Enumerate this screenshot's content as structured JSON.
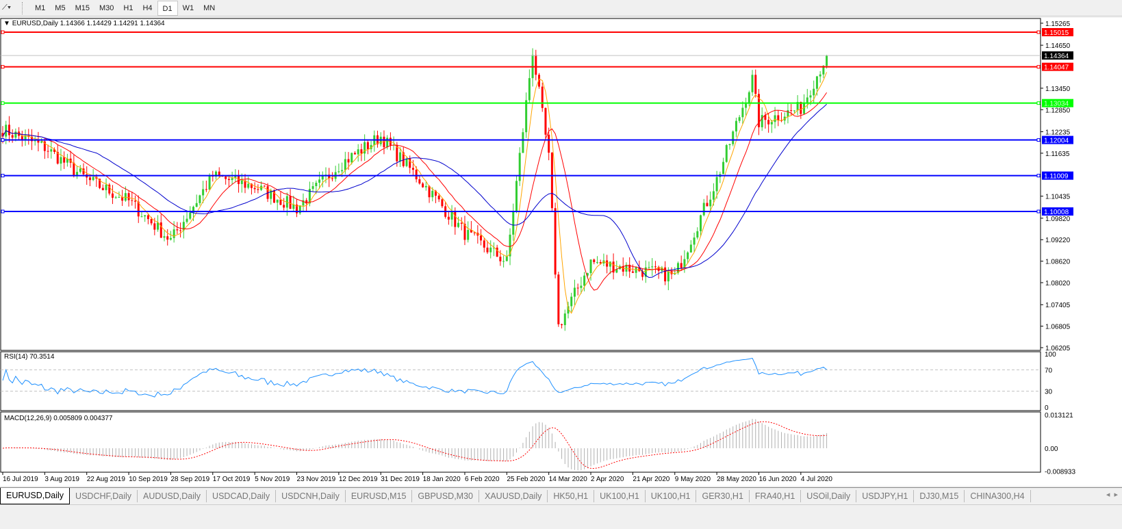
{
  "toolbar": {
    "timeframes": [
      "M1",
      "M5",
      "M15",
      "M30",
      "H1",
      "H4",
      "D1",
      "W1",
      "MN"
    ],
    "active": "D1"
  },
  "chart": {
    "header": "EURUSD,Daily  1.14366 1.14429 1.14291 1.14364",
    "current_price": "1.14364",
    "price_axis": [
      "1.15265",
      "1.14650",
      "1.13450",
      "1.12850",
      "1.12235",
      "1.11635",
      "1.10435",
      "1.09820",
      "1.09220",
      "1.08620",
      "1.08020",
      "1.07405",
      "1.06805",
      "1.06205"
    ],
    "hlines": [
      {
        "price": "1.15015",
        "color": "#ff0000"
      },
      {
        "price": "1.14047",
        "color": "#ff0000"
      },
      {
        "price": "1.13034",
        "color": "#00ff00"
      },
      {
        "price": "1.12004",
        "color": "#0000ff"
      },
      {
        "price": "1.11009",
        "color": "#0000ff"
      },
      {
        "price": "1.10008",
        "color": "#0000ff"
      }
    ],
    "date_axis": [
      "16 Jul 2019",
      "3 Aug 2019",
      "22 Aug 2019",
      "10 Sep 2019",
      "28 Sep 2019",
      "17 Oct 2019",
      "5 Nov 2019",
      "23 Nov 2019",
      "12 Dec 2019",
      "31 Dec 2019",
      "18 Jan 2020",
      "6 Feb 2020",
      "25 Feb 2020",
      "14 Mar 2020",
      "2 Apr 2020",
      "21 Apr 2020",
      "9 May 2020",
      "28 May 2020",
      "16 Jun 2020",
      "4 Jul 2020"
    ],
    "colors": {
      "bull": "#32cd32",
      "bear": "#ff0000",
      "ma_fast": "#ffa500",
      "ma_mid": "#ff0000",
      "ma_slow": "#0000cd"
    }
  },
  "rsi": {
    "label": "RSI(14) 70.3514",
    "axis": [
      "100",
      "70",
      "30",
      "0"
    ],
    "color": "#1e90ff"
  },
  "macd": {
    "label": "MACD(12,26,9) 0.005809 0.004377",
    "axis": [
      "0.013121",
      "0.00",
      "-0.008933"
    ]
  },
  "chart_data": {
    "type": "candlestick",
    "symbol": "EURUSD",
    "timeframe": "Daily",
    "approx_close_by_date": [
      [
        "16 Jul 2019",
        1.123
      ],
      [
        "3 Aug 2019",
        1.118
      ],
      [
        "22 Aug 2019",
        1.109
      ],
      [
        "10 Sep 2019",
        1.103
      ],
      [
        "28 Sep 2019",
        1.092
      ],
      [
        "17 Oct 2019",
        1.11
      ],
      [
        "5 Nov 2019",
        1.107
      ],
      [
        "23 Nov 2019",
        1.101
      ],
      [
        "12 Dec 2019",
        1.113
      ],
      [
        "31 Dec 2019",
        1.121
      ],
      [
        "18 Jan 2020",
        1.108
      ],
      [
        "6 Feb 2020",
        1.094
      ],
      [
        "25 Feb 2020",
        1.086
      ],
      [
        "9 Mar 2020",
        1.145
      ],
      [
        "14 Mar 2020",
        1.115
      ],
      [
        "20 Mar 2020",
        1.068
      ],
      [
        "2 Apr 2020",
        1.086
      ],
      [
        "21 Apr 2020",
        1.084
      ],
      [
        "9 May 2020",
        1.082
      ],
      [
        "28 May 2020",
        1.109
      ],
      [
        "10 Jun 2020",
        1.137
      ],
      [
        "16 Jun 2020",
        1.125
      ],
      [
        "4 Jul 2020",
        1.129
      ],
      [
        "14 Jul 2020",
        1.14364
      ]
    ],
    "ylim": [
      1.06205,
      1.15265
    ]
  },
  "tabs": [
    "EURUSD,Daily",
    "USDCHF,Daily",
    "AUDUSD,Daily",
    "USDCAD,Daily",
    "USDCNH,Daily",
    "EURUSD,M15",
    "GBPUSD,M30",
    "XAUUSD,Daily",
    "HK50,H1",
    "UK100,H1",
    "UK100,H1",
    "GER30,H1",
    "FRA40,H1",
    "USOil,Daily",
    "USDJPY,H1",
    "DJ30,M15",
    "CHINA300,H4"
  ],
  "active_tab": "EURUSD,Daily"
}
